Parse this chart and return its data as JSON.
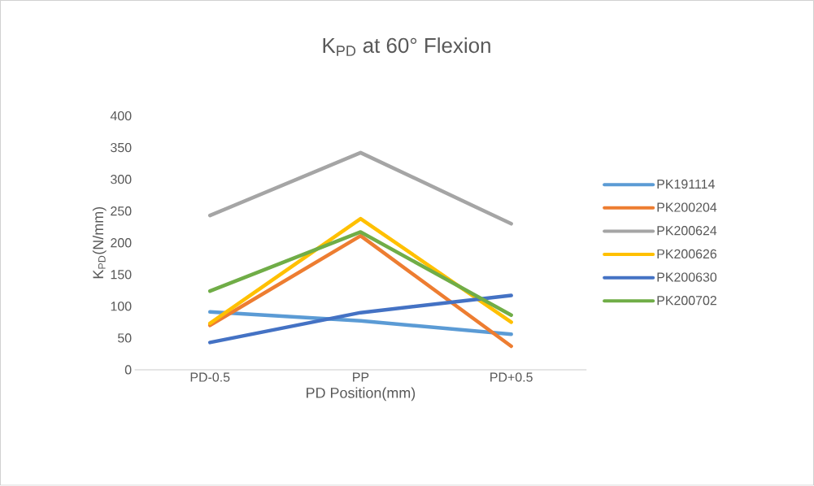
{
  "chart_data": {
    "type": "line",
    "title": "K$_{PD}$ at 60° Flexion",
    "xlabel": "PD Position(mm)",
    "ylabel": "K$_{PD}$(N/mm)",
    "categories": [
      "PD-0.5",
      "PP",
      "PD+0.5"
    ],
    "series": [
      {
        "name": "PK191114",
        "color": "#5b9bd5",
        "values": [
          91,
          77,
          56
        ]
      },
      {
        "name": "PK200204",
        "color": "#ed7d31",
        "values": [
          70,
          211,
          37
        ]
      },
      {
        "name": "PK200624",
        "color": "#a5a5a5",
        "values": [
          243,
          342,
          230
        ]
      },
      {
        "name": "PK200626",
        "color": "#ffc000",
        "values": [
          73,
          238,
          75
        ]
      },
      {
        "name": "PK200630",
        "color": "#4472c4",
        "values": [
          43,
          90,
          117
        ]
      },
      {
        "name": "PK200702",
        "color": "#70ad47",
        "values": [
          124,
          217,
          86
        ]
      }
    ],
    "ylim": [
      0,
      400
    ],
    "yticks": [
      0,
      50,
      100,
      150,
      200,
      250,
      300,
      350,
      400
    ],
    "grid": false,
    "legend": "right",
    "marker": "none",
    "line_style": "solid"
  }
}
